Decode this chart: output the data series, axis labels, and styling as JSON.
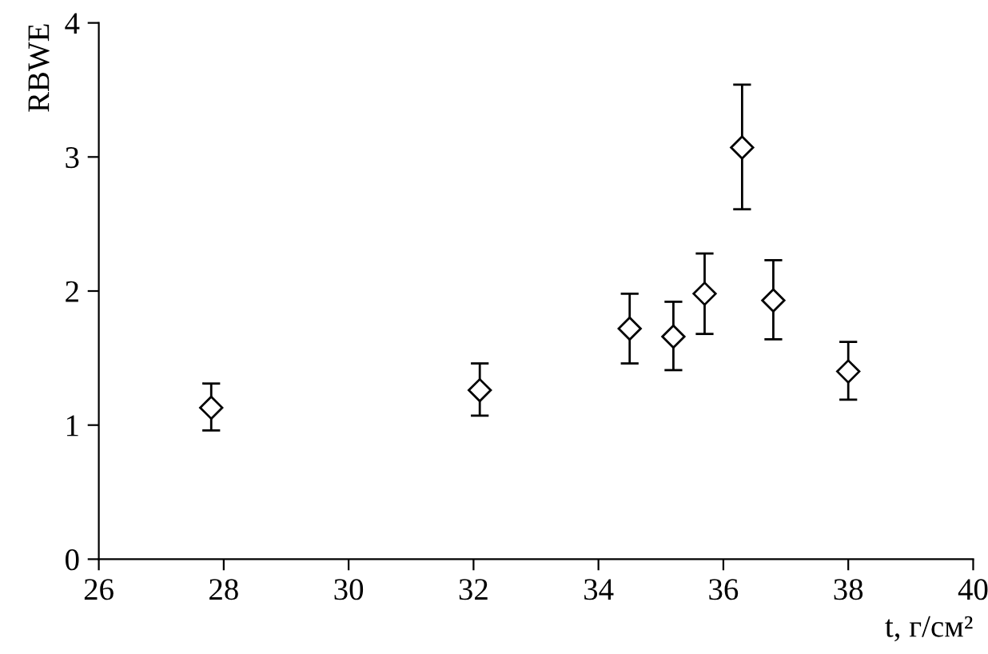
{
  "chart_data": {
    "type": "scatter",
    "xlabel": "t, г/см²",
    "ylabel": "RBWE",
    "x": [
      27.8,
      32.1,
      34.5,
      35.2,
      35.7,
      36.3,
      36.8,
      38.0
    ],
    "series": [
      {
        "color": "#000000",
        "values": [
          1.13,
          1.26,
          1.72,
          1.66,
          1.98,
          3.07,
          1.93,
          1.4
        ],
        "errors": [
          [
            0.96,
            1.31
          ],
          [
            1.07,
            1.46
          ],
          [
            1.46,
            1.98
          ],
          [
            1.41,
            1.92
          ],
          [
            1.68,
            2.28
          ],
          [
            2.61,
            3.54
          ],
          [
            1.64,
            2.23
          ],
          [
            1.19,
            1.62
          ]
        ]
      }
    ],
    "marker": "diamond",
    "grid": false,
    "legend": false,
    "xlim": [
      26,
      40
    ],
    "xticks": [
      26,
      28,
      30,
      32,
      34,
      36,
      38,
      40
    ],
    "ylim": [
      0,
      4
    ],
    "yticks": [
      0,
      1,
      2,
      3,
      4
    ]
  }
}
